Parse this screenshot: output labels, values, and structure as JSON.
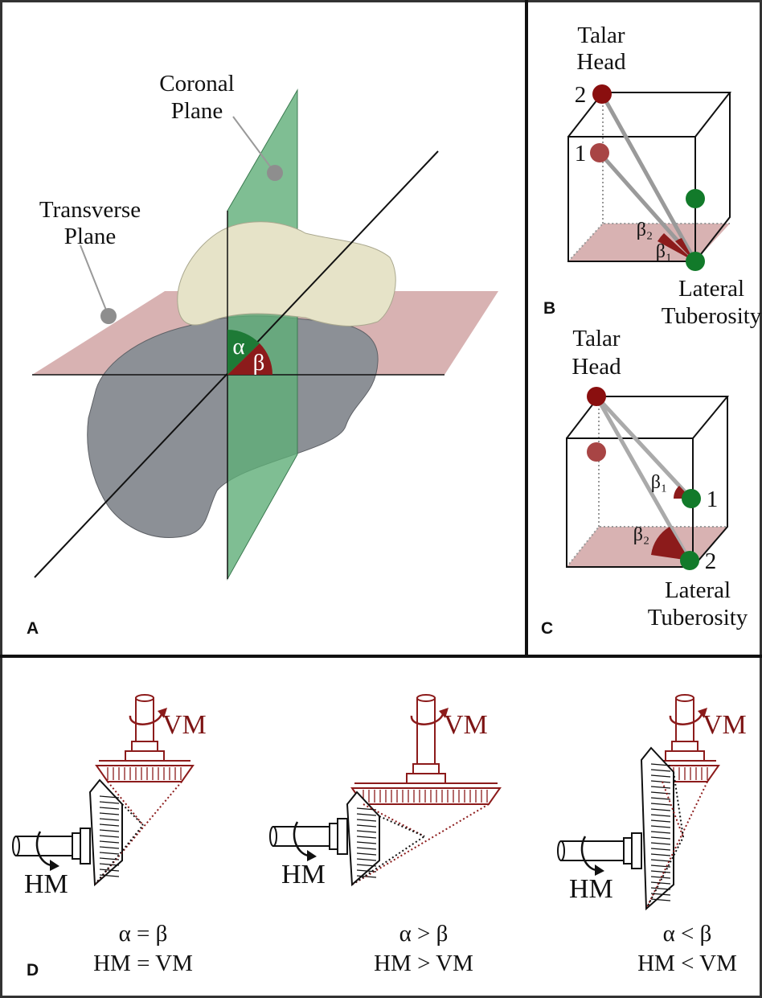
{
  "panel_a": {
    "label": "A",
    "coronal_plane": [
      "Coronal",
      "Plane"
    ],
    "transverse_plane": [
      "Transverse",
      "Plane"
    ],
    "alpha": "α",
    "beta": "β"
  },
  "panel_b": {
    "label": "B",
    "talar_head": [
      "Talar",
      "Head"
    ],
    "lateral_tuberosity": [
      "Lateral",
      "Tuberosity"
    ],
    "point_labels": [
      "2",
      "1"
    ],
    "angles": [
      "β₂",
      "β₁"
    ]
  },
  "panel_c": {
    "label": "C",
    "talar_head": [
      "Talar",
      "Head"
    ],
    "lateral_tuberosity": [
      "Lateral",
      "Tuberosity"
    ],
    "point_labels": [
      "1",
      "2"
    ],
    "angles": [
      "β₁",
      "β₂"
    ]
  },
  "panel_d": {
    "label": "D",
    "gears": [
      {
        "vm": "VM",
        "hm": "HM",
        "angle_relation": "α = β",
        "motion_relation": "HM = VM"
      },
      {
        "vm": "VM",
        "hm": "HM",
        "angle_relation": "α > β",
        "motion_relation": "HM > VM"
      },
      {
        "vm": "VM",
        "hm": "HM",
        "angle_relation": "α < β",
        "motion_relation": "HM < VM"
      }
    ]
  }
}
